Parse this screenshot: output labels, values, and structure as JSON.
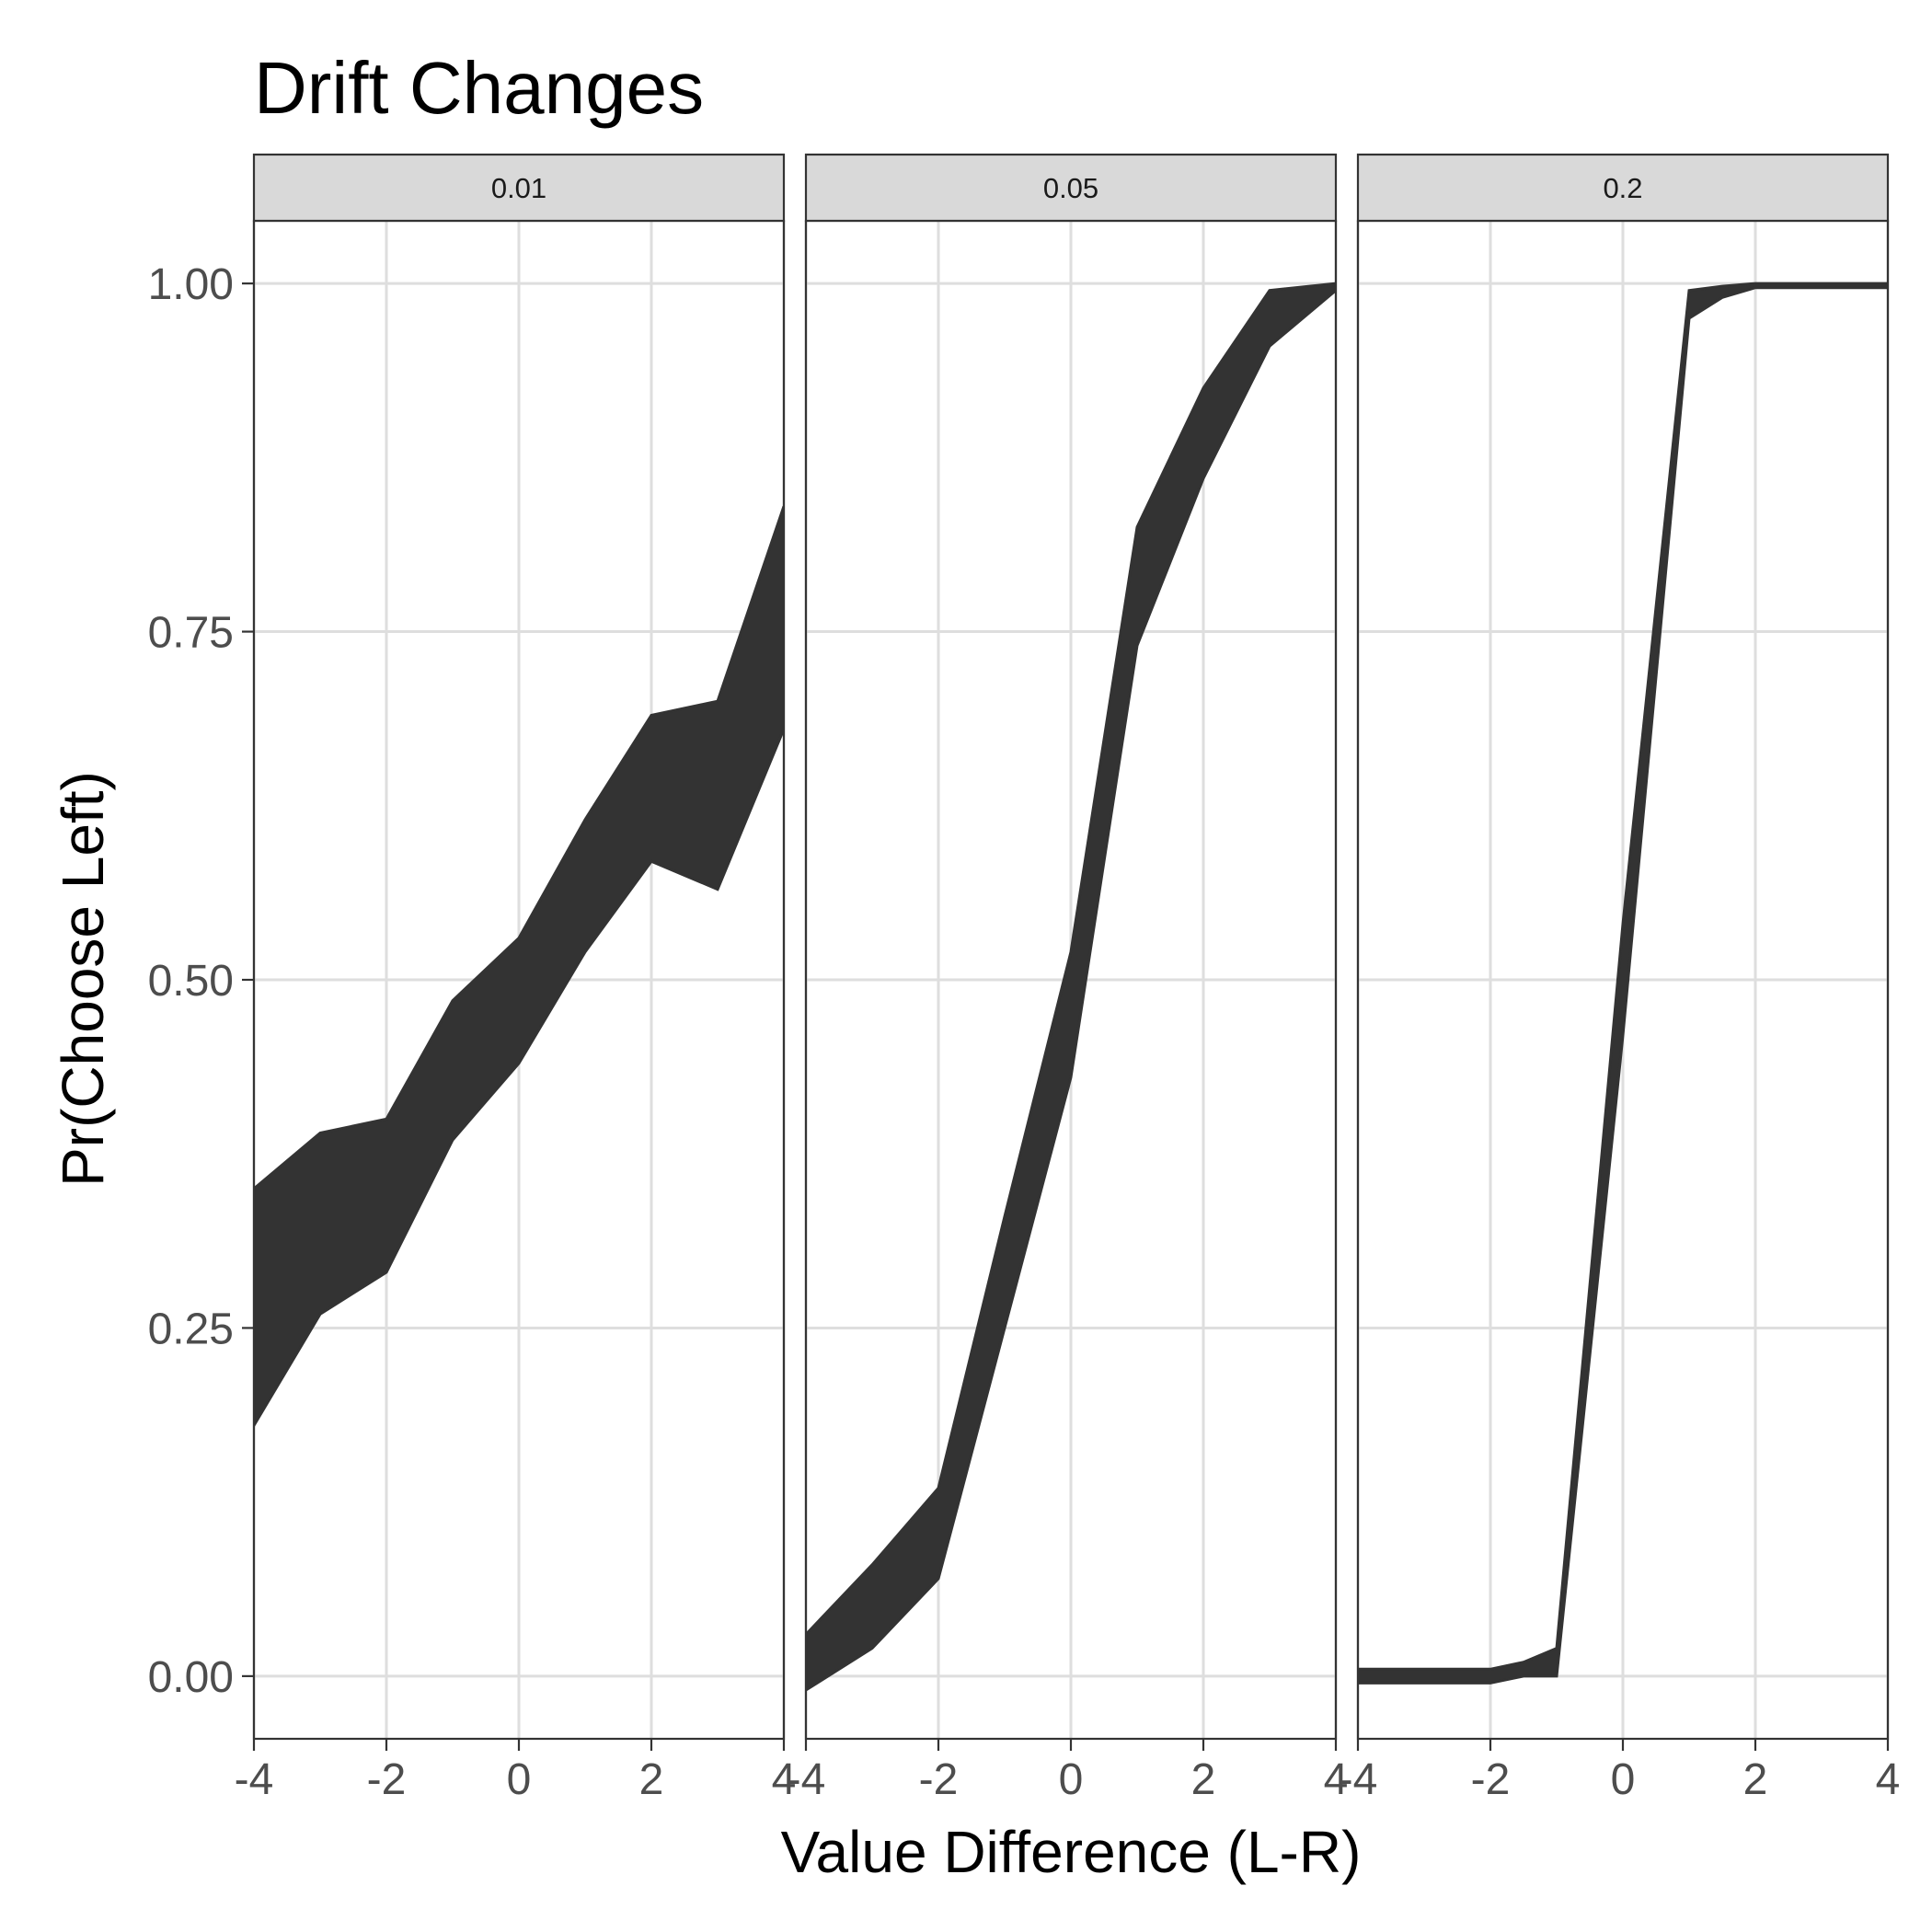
{
  "chart_data": {
    "type": "area",
    "title": "Drift Changes",
    "xlabel": "Value Difference (L-R)",
    "ylabel": "Pr(Choose Left)",
    "xlim": [
      -4,
      4
    ],
    "ylim": [
      0,
      1
    ],
    "x_ticks": [
      -4,
      -2,
      0,
      2,
      4
    ],
    "x_tick_labels": [
      "-4",
      "-2",
      "0",
      "2",
      "4"
    ],
    "y_ticks": [
      0,
      0.25,
      0.5,
      0.75,
      1
    ],
    "y_tick_labels": [
      "0.00",
      "0.25",
      "0.50",
      "0.75",
      "1.00"
    ],
    "grid": true,
    "ribbon_color": "#333333",
    "panels": [
      {
        "label": "0.01",
        "x": [
          -4,
          -3,
          -2,
          -1,
          0,
          1,
          2,
          3,
          4
        ],
        "lower": [
          0.18,
          0.26,
          0.29,
          0.385,
          0.44,
          0.52,
          0.585,
          0.565,
          0.68
        ],
        "upper": [
          0.35,
          0.39,
          0.4,
          0.485,
          0.53,
          0.615,
          0.69,
          0.7,
          0.84
        ]
      },
      {
        "label": "0.05",
        "x": [
          -4,
          -3,
          -2,
          -1,
          0,
          1,
          2,
          3,
          4
        ],
        "lower": [
          -0.01,
          0.02,
          0.07,
          0.25,
          0.43,
          0.74,
          0.86,
          0.955,
          0.995
        ],
        "upper": [
          0.03,
          0.08,
          0.135,
          0.33,
          0.52,
          0.825,
          0.925,
          0.995,
          1.0
        ]
      },
      {
        "label": "0.2",
        "x": [
          -4,
          -3,
          -2,
          -1.5,
          -1,
          0,
          1,
          1.5,
          2,
          3,
          4
        ],
        "lower": [
          -0.005,
          -0.005,
          -0.005,
          0.0,
          0.0,
          0.46,
          0.975,
          0.99,
          0.997,
          0.997,
          0.997
        ],
        "upper": [
          0.005,
          0.005,
          0.005,
          0.01,
          0.02,
          0.54,
          0.995,
          0.998,
          1.0,
          1.0,
          1.0
        ]
      }
    ]
  }
}
